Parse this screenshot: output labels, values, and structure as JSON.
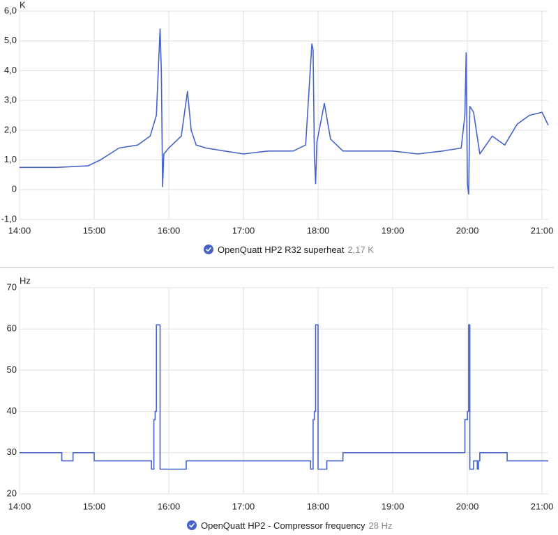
{
  "colors": {
    "series": "#4763c8",
    "grid": "#e0e0e0",
    "text": "#212121",
    "muted": "#8a8a8a",
    "check": "#4763c8"
  },
  "legend_icon": "check-circle-icon",
  "chart_data": [
    {
      "type": "line",
      "unit_label": "K",
      "ylim": [
        -1.0,
        6.0
      ],
      "yticks": [
        -1.0,
        0,
        1.0,
        2.0,
        3.0,
        4.0,
        5.0,
        6.0
      ],
      "ytick_labels": [
        "-1,0",
        "0",
        "1,0",
        "2,0",
        "3,0",
        "4,0",
        "5,0",
        "6,0"
      ],
      "xlim": [
        "14:00",
        "21:05"
      ],
      "xtick_labels": [
        "14:00",
        "15:00",
        "16:00",
        "17:00",
        "18:00",
        "19:00",
        "20:00",
        "21:00"
      ],
      "grid": true,
      "legend_placement": "bottom-center",
      "legend": {
        "name": "OpenQuatt HP2 R32 superheat",
        "value": "2,17 K"
      },
      "series": [
        {
          "name": "OpenQuatt HP2 R32 superheat",
          "x": [
            "14:00",
            "14:30",
            "14:55",
            "15:05",
            "15:20",
            "15:35",
            "15:45",
            "15:50",
            "15:52",
            "15:53",
            "15:54",
            "15:55",
            "15:56",
            "16:00",
            "16:10",
            "16:15",
            "16:18",
            "16:22",
            "16:30",
            "16:45",
            "17:00",
            "17:20",
            "17:40",
            "17:50",
            "17:55",
            "17:56",
            "17:57",
            "17:58",
            "17:59",
            "18:00",
            "18:05",
            "18:10",
            "18:20",
            "18:40",
            "19:00",
            "19:20",
            "19:40",
            "19:55",
            "19:58",
            "19:59",
            "20:00",
            "20:01",
            "20:02",
            "20:05",
            "20:10",
            "20:20",
            "20:30",
            "20:40",
            "20:50",
            "21:00",
            "21:05"
          ],
          "y": [
            0.75,
            0.75,
            0.8,
            1.0,
            1.4,
            1.5,
            1.8,
            2.5,
            4.5,
            5.4,
            4.0,
            0.1,
            1.2,
            1.4,
            1.8,
            3.3,
            2.0,
            1.5,
            1.4,
            1.3,
            1.2,
            1.3,
            1.3,
            1.5,
            4.9,
            4.7,
            1.2,
            0.2,
            1.6,
            1.8,
            2.9,
            1.7,
            1.3,
            1.3,
            1.3,
            1.2,
            1.3,
            1.4,
            2.5,
            4.6,
            0.2,
            -0.15,
            2.8,
            2.6,
            1.2,
            1.8,
            1.5,
            2.2,
            2.5,
            2.6,
            2.17
          ]
        }
      ]
    },
    {
      "type": "line",
      "step": true,
      "unit_label": "Hz",
      "ylim": [
        20,
        70
      ],
      "yticks": [
        20,
        30,
        40,
        50,
        60,
        70
      ],
      "ytick_labels": [
        "20",
        "30",
        "40",
        "50",
        "60",
        "70"
      ],
      "xlim": [
        "14:00",
        "21:05"
      ],
      "xtick_labels": [
        "14:00",
        "15:00",
        "16:00",
        "17:00",
        "18:00",
        "19:00",
        "20:00",
        "21:00"
      ],
      "grid": true,
      "legend_placement": "bottom-center",
      "legend": {
        "name": "OpenQuatt HP2 - Compressor frequency",
        "value": "28 Hz"
      },
      "series": [
        {
          "name": "OpenQuatt HP2 - Compressor frequency",
          "x": [
            "14:00",
            "14:34",
            "14:43",
            "15:00",
            "15:46",
            "15:48",
            "15:49",
            "15:50",
            "15:52",
            "15:53",
            "16:14",
            "17:54",
            "17:56",
            "17:57",
            "17:58",
            "18:00",
            "18:07",
            "18:20",
            "19:58",
            "20:00",
            "20:01",
            "20:02",
            "20:05",
            "20:08",
            "20:09",
            "20:10",
            "20:32",
            "21:05"
          ],
          "y": [
            30,
            28,
            30,
            28,
            26,
            38,
            40,
            61,
            61,
            26,
            28,
            26,
            38,
            40,
            61,
            26,
            28,
            30,
            38,
            40,
            61,
            26,
            28,
            26,
            28,
            30,
            28,
            28
          ]
        }
      ]
    }
  ]
}
